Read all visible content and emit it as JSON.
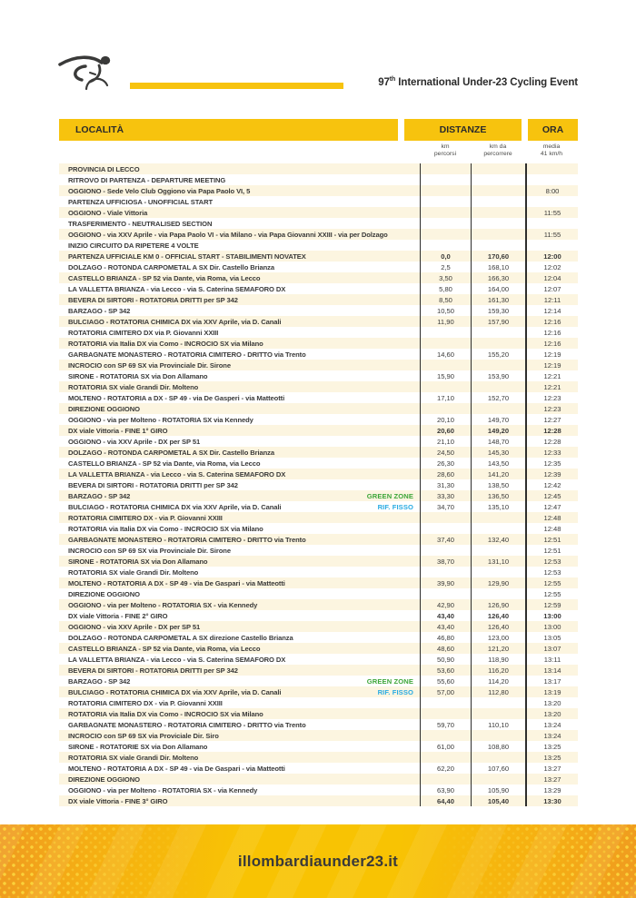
{
  "header": {
    "title_num": "97",
    "title_sup": "th",
    "title_rest": " International Under-23 Cycling Event"
  },
  "colors": {
    "accent_yellow": "#f7c30e",
    "row_cream": "#fcf5e0",
    "green_zone": "#3da639",
    "rif_fisso": "#29abe2",
    "footer_orange": "#ef9a20",
    "footer_gold": "#f8c303",
    "text_dark": "#3a3a39"
  },
  "table": {
    "col_localita": "LOCALITÀ",
    "col_distanze": "DISTANZE",
    "col_ora": "ORA",
    "sub_km_line1": "km",
    "sub_km_line2": "percorsi",
    "sub_kmda_line1": "km da",
    "sub_kmda_line2": "percorrere",
    "sub_ora_line1": "media",
    "sub_ora_line2": "41 km/h",
    "rows": [
      {
        "loc": "PROVINCIA DI LECCO",
        "km": "",
        "kmda": "",
        "ora": "",
        "bold": true
      },
      {
        "loc": "RITROVO DI PARTENZA - DEPARTURE MEETING",
        "km": "",
        "kmda": "",
        "ora": "",
        "bold": true
      },
      {
        "loc": "OGGIONO - Sede Velo Club Oggiono via Papa Paolo VI, 5",
        "km": "",
        "kmda": "",
        "ora": "8:00"
      },
      {
        "loc": "PARTENZA UFFICIOSA - UNOFFICIAL START",
        "km": "",
        "kmda": "",
        "ora": "",
        "bold": true
      },
      {
        "loc": "OGGIONO - Viale Vittoria",
        "km": "",
        "kmda": "",
        "ora": "11:55"
      },
      {
        "loc": "TRASFERIMENTO - NEUTRALISED SECTION",
        "km": "",
        "kmda": "",
        "ora": "",
        "bold": true
      },
      {
        "loc": "OGGIONO - via XXV Aprile - via Papa Paolo VI - via Milano - via Papa Giovanni XXIII - via per Dolzago",
        "km": "",
        "kmda": "",
        "ora": "11:55"
      },
      {
        "loc": "INIZIO CIRCUITO DA RIPETERE 4 VOLTE",
        "km": "",
        "kmda": "",
        "ora": "",
        "bold": true
      },
      {
        "loc": "PARTENZA UFFICIALE KM 0 - OFFICIAL START - STABILIMENTI NOVATEX",
        "km": "0,0",
        "kmda": "170,60",
        "ora": "12:00",
        "bold": true
      },
      {
        "loc": "DOLZAGO - ROTONDA CARPOMETAL A SX Dir. Castello Brianza",
        "km": "2,5",
        "kmda": "168,10",
        "ora": "12:02"
      },
      {
        "loc": "CASTELLO BRIANZA - SP 52 via Dante, via Roma, via Lecco",
        "km": "3,50",
        "kmda": "166,30",
        "ora": "12:04"
      },
      {
        "loc": "LA VALLETTA BRIANZA - via Lecco - via S. Caterina SEMAFORO DX",
        "km": "5,80",
        "kmda": "164,00",
        "ora": "12:07"
      },
      {
        "loc": "BEVERA DI SIRTORI - ROTATORIA DRITTI per SP 342",
        "km": "8,50",
        "kmda": "161,30",
        "ora": "12:11"
      },
      {
        "loc": "BARZAGO - SP 342",
        "km": "10,50",
        "kmda": "159,30",
        "ora": "12:14"
      },
      {
        "loc": "BULCIAGO - ROTATORIA CHIMICA DX via XXV Aprile, via D. Canali",
        "km": "11,90",
        "kmda": "157,90",
        "ora": "12:16"
      },
      {
        "loc": "ROTATORIA CIMITERO DX via P. Giovanni XXIII",
        "km": "",
        "kmda": "",
        "ora": "12:16"
      },
      {
        "loc": "ROTATORIA via Italia DX via Como - INCROCIO SX via Milano",
        "km": "",
        "kmda": "",
        "ora": "12:16"
      },
      {
        "loc": "GARBAGNATE MONASTERO - ROTATORIA CIMITERO - DRITTO via Trento",
        "km": "14,60",
        "kmda": "155,20",
        "ora": "12:19"
      },
      {
        "loc": "INCROCIO con SP 69 SX via Provinciale Dir. Sirone",
        "km": "",
        "kmda": "",
        "ora": "12:19"
      },
      {
        "loc": "SIRONE - ROTATORIA SX via Don Allamano",
        "km": "15,90",
        "kmda": "153,90",
        "ora": "12:21"
      },
      {
        "loc": "ROTATORIA SX viale Grandi Dir. Molteno",
        "km": "",
        "kmda": "",
        "ora": "12:21"
      },
      {
        "loc": "MOLTENO - ROTATORIA a DX - SP 49 - via De Gasperi - via Matteotti",
        "km": "17,10",
        "kmda": "152,70",
        "ora": "12:23"
      },
      {
        "loc": "DIREZIONE OGGIONO",
        "km": "",
        "kmda": "",
        "ora": "12:23"
      },
      {
        "loc": "OGGIONO - via per Molteno - ROTATORIA SX  via Kennedy",
        "km": "20,10",
        "kmda": "149,70",
        "ora": "12:27"
      },
      {
        "loc": "DX viale Vittoria - FINE 1° GIRO",
        "km": "20,60",
        "kmda": "149,20",
        "ora": "12:28",
        "bold": true
      },
      {
        "loc": "OGGIONO - via XXV Aprile - DX per SP 51",
        "km": "21,10",
        "kmda": "148,70",
        "ora": "12:28"
      },
      {
        "loc": "DOLZAGO - ROTONDA CARPOMETAL A SX Dir. Castello Brianza",
        "km": "24,50",
        "kmda": "145,30",
        "ora": "12:33"
      },
      {
        "loc": "CASTELLO BRIANZA - SP 52 via Dante, via Roma, via Lecco",
        "km": "26,30",
        "kmda": "143,50",
        "ora": "12:35"
      },
      {
        "loc": "LA VALLETTA BRIANZA - via Lecco - via S. Caterina SEMAFORO DX",
        "km": "28,60",
        "kmda": "141,20",
        "ora": "12:39"
      },
      {
        "loc": "BEVERA DI SIRTORI - ROTATORIA DRITTI per SP 342",
        "km": "31,30",
        "kmda": "138,50",
        "ora": "12:42"
      },
      {
        "loc": "BARZAGO - SP 342",
        "tag": "GREEN ZONE",
        "tag_type": "green",
        "km": "33,30",
        "kmda": "136,50",
        "ora": "12:45"
      },
      {
        "loc": "BULCIAGO - ROTATORIA CHIMICA DX via XXV Aprile, via D. Canali",
        "tag": "RIF. FISSO",
        "tag_type": "blue",
        "km": "34,70",
        "kmda": "135,10",
        "ora": "12:47"
      },
      {
        "loc": "ROTATORIA CIMITERO DX - via P. Giovanni XXIII",
        "km": "",
        "kmda": "",
        "ora": "12:48"
      },
      {
        "loc": "ROTATORIA via Italia DX via Como - INCROCIO SX via Milano",
        "km": "",
        "kmda": "",
        "ora": "12:48"
      },
      {
        "loc": "GARBAGNATE MONASTERO - ROTATORIA CIMITERO - DRITTO via Trento",
        "km": "37,40",
        "kmda": "132,40",
        "ora": "12:51"
      },
      {
        "loc": "INCROCIO con SP 69 SX via Provinciale Dir. Sirone",
        "km": "",
        "kmda": "",
        "ora": "12:51"
      },
      {
        "loc": "SIRONE - ROTATORIA SX via Don Allamano",
        "km": "38,70",
        "kmda": "131,10",
        "ora": "12:53"
      },
      {
        "loc": "ROTATORIA SX viale Grandi Dir. Molteno",
        "km": "",
        "kmda": "",
        "ora": "12:53"
      },
      {
        "loc": "MOLTENO - ROTATORIA A DX - SP 49 - via De Gaspari - via Matteotti",
        "km": "39,90",
        "kmda": "129,90",
        "ora": "12:55"
      },
      {
        "loc": "DIREZIONE OGGIONO",
        "km": "",
        "kmda": "",
        "ora": "12:55"
      },
      {
        "loc": "OGGIONO - via per Molteno - ROTATORIA SX - via Kennedy",
        "km": "42,90",
        "kmda": "126,90",
        "ora": "12:59"
      },
      {
        "loc": "DX viale Vittoria - FINE 2° GIRO",
        "km": "43,40",
        "kmda": "126,40",
        "ora": "13:00",
        "bold": true
      },
      {
        "loc": "OGGIONO - via XXV Aprile - DX per SP 51",
        "km": "43,40",
        "kmda": "126,40",
        "ora": "13:00"
      },
      {
        "loc": "DOLZAGO - ROTONDA CARPOMETAL A SX direzione Castello Brianza",
        "km": "46,80",
        "kmda": "123,00",
        "ora": "13:05"
      },
      {
        "loc": "CASTELLO BRIANZA - SP 52 via Dante, via Roma, via Lecco",
        "km": "48,60",
        "kmda": "121,20",
        "ora": "13:07"
      },
      {
        "loc": "LA VALLETTA BRIANZA - via Lecco - via S. Caterina SEMAFORO DX",
        "km": "50,90",
        "kmda": "118,90",
        "ora": "13:11"
      },
      {
        "loc": "BEVERA DI SIRTORI - ROTATORIA DRITTI per SP 342",
        "km": "53,60",
        "kmda": "116,20",
        "ora": "13:14"
      },
      {
        "loc": "BARZAGO - SP 342",
        "tag": "GREEN ZONE",
        "tag_type": "green",
        "km": "55,60",
        "kmda": "114,20",
        "ora": "13:17"
      },
      {
        "loc": "BULCIAGO - ROTATORIA CHIMICA DX via XXV Aprile, via D. Canali",
        "tag": "RIF. FISSO",
        "tag_type": "blue",
        "km": "57,00",
        "kmda": "112,80",
        "ora": "13:19"
      },
      {
        "loc": "ROTATORIA CIMITERO DX - via P. Giovanni XXIII",
        "km": "",
        "kmda": "",
        "ora": "13:20"
      },
      {
        "loc": "ROTATORIA via Italia DX via Como - INCROCIO SX via Milano",
        "km": "",
        "kmda": "",
        "ora": "13:20"
      },
      {
        "loc": "GARBAGNATE MONASTERO - ROTATORIA CIMITERO - DRITTO via Trento",
        "km": "59,70",
        "kmda": "110,10",
        "ora": "13:24"
      },
      {
        "loc": "INCROCIO con SP 69 SX via Proviciale Dir. Siro",
        "km": "",
        "kmda": "",
        "ora": "13:24"
      },
      {
        "loc": "SIRONE - ROTATORIE SX via Don Allamano",
        "km": "61,00",
        "kmda": "108,80",
        "ora": "13:25"
      },
      {
        "loc": "ROTATORIA SX viale Grandi Dir. Molteno",
        "km": "",
        "kmda": "",
        "ora": "13:25"
      },
      {
        "loc": "MOLTENO - ROTATORIA A DX - SP 49 - via De Gaspari - via Matteotti",
        "km": "62,20",
        "kmda": "107,60",
        "ora": "13:27"
      },
      {
        "loc": "DIREZIONE OGGIONO",
        "km": "",
        "kmda": "",
        "ora": "13:27"
      },
      {
        "loc": "OGGIONO - via per Molteno - ROTATORIA SX - via Kennedy",
        "km": "63,90",
        "kmda": "105,90",
        "ora": "13:29"
      },
      {
        "loc": "DX viale Vittoria - FINE 3° GIRO",
        "km": "64,40",
        "kmda": "105,40",
        "ora": "13:30",
        "bold": true
      }
    ]
  },
  "footer": {
    "url": "illombardiaunder23.it"
  }
}
